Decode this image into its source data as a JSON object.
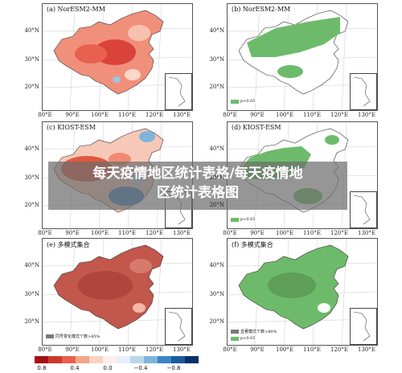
{
  "panels": [
    {
      "title": "(a) NorESM2-MM",
      "lat_labels": [
        "40°N",
        "30°N",
        "20°N"
      ],
      "lon_labels": [
        "80°E",
        "90°E",
        "100°E",
        "110°E",
        "120°E",
        "130°E"
      ],
      "legend": []
    },
    {
      "title": "(b) NorESM2-MM",
      "lat_labels": [
        "40°N",
        "30°N",
        "20°N"
      ],
      "lon_labels": [
        "80°E",
        "90°E",
        "100°E",
        "110°E",
        "120°E",
        "130°E"
      ],
      "legend": [
        {
          "label": "p<0.05",
          "color": "#6dbb6a"
        }
      ]
    },
    {
      "title": "(c) KIOST-ESM",
      "lat_labels": [
        "40°N",
        "30°N",
        "20°N"
      ],
      "lon_labels": [
        "80°E",
        "90°E",
        "100°E",
        "110°E",
        "120°E",
        "130°E"
      ],
      "legend": []
    },
    {
      "title": "(d) KIOST-ESM",
      "lat_labels": [
        "40°N",
        "30°N",
        "20°N"
      ],
      "lon_labels": [
        "80°E",
        "90°E",
        "100°E",
        "110°E",
        "120°E",
        "130°E"
      ],
      "legend": [
        {
          "label": "p<0.05",
          "color": "#6dbb6a"
        }
      ]
    },
    {
      "title": "(e) 多模式集合",
      "lat_labels": [
        "40°N",
        "30°N",
        "20°N"
      ],
      "lon_labels": [
        "80°E",
        "90°E",
        "100°E",
        "110°E",
        "120°E",
        "130°E"
      ],
      "legend": [
        {
          "label": "同号变化模式个数>85%",
          "color": "#7a7a7a"
        }
      ]
    },
    {
      "title": "(f) 多模式集合",
      "lat_labels": [
        "40°N",
        "30°N",
        "20°N"
      ],
      "lon_labels": [
        "80°E",
        "90°E",
        "100°E",
        "110°E",
        "120°E",
        "130°E"
      ],
      "legend": [
        {
          "label": "显著模式个数>80%",
          "color": "#7a7a7a"
        },
        {
          "label": "p<0.05",
          "color": "#6dbb6a"
        }
      ]
    }
  ],
  "overlay": {
    "line1": "每天疫情地区统计表格/每天疫情地",
    "line2": "区统计表格图"
  },
  "colorbar": {
    "ticks": [
      "0.8",
      "0.4",
      "0.0",
      "−0.4",
      "−0.8"
    ],
    "colors": [
      "#a50f15",
      "#cb3a2e",
      "#e9614d",
      "#f4a58a",
      "#fbd3c1",
      "#fdf0ea",
      "#e6f0f8",
      "#b9d7ec",
      "#7fb5db",
      "#3d85c4",
      "#1a5a9e",
      "#08306b"
    ]
  },
  "colors": {
    "sig_green": "#6dbb6a",
    "gray_dot": "#7a7a7a",
    "border": "#555555"
  }
}
